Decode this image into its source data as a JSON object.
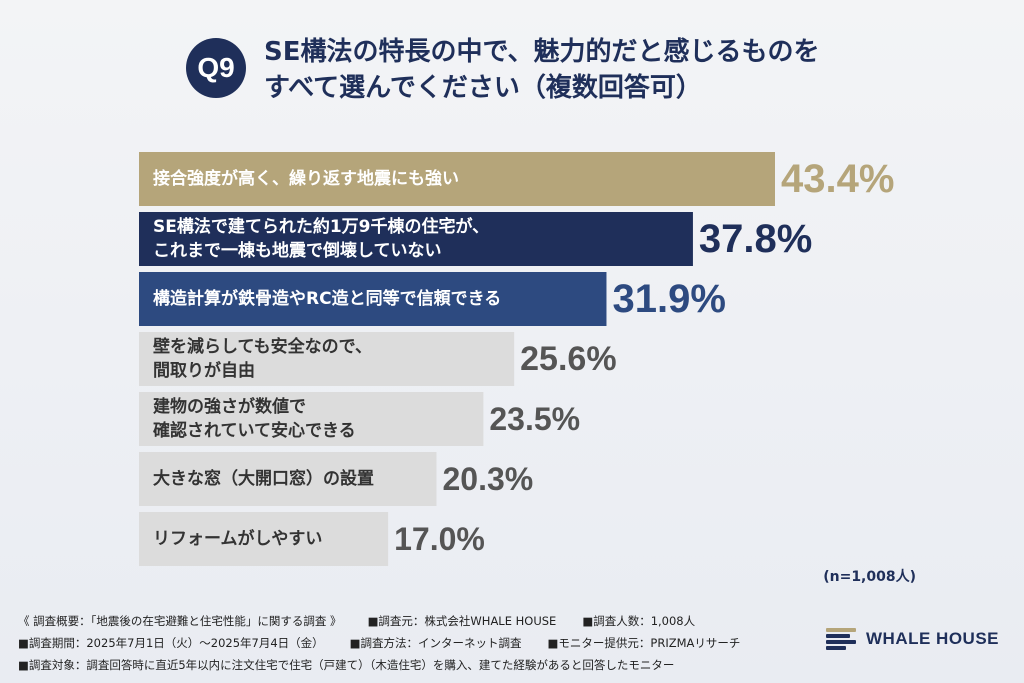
{
  "header": {
    "badge": "Q9",
    "title_line1": "SE構法の特長の中で、魅力的だと感じるものを",
    "title_line2": "すべて選んでください（複数回答可）"
  },
  "chart_data": {
    "type": "bar",
    "orientation": "horizontal",
    "unit": "%",
    "categories": [
      [
        "接合強度が高く、繰り返す地震にも強い"
      ],
      [
        "SE構法で建てられた約1万9千棟の住宅が、",
        "これまで一棟も地震で倒壊していない"
      ],
      [
        "構造計算が鉄骨造やRC造と同等で信頼できる"
      ],
      [
        "壁を減らしても安全なので、",
        "間取りが自由"
      ],
      [
        "建物の強さが数値で",
        "確認されていて安心できる"
      ],
      [
        "大きな窓（大開口窓）の設置"
      ],
      [
        "リフォームがしやすい"
      ]
    ],
    "values": [
      43.4,
      37.8,
      31.9,
      25.6,
      23.5,
      20.3,
      17.0
    ],
    "value_labels": [
      "43.4%",
      "37.8%",
      "31.9%",
      "25.6%",
      "23.5%",
      "20.3%",
      "17.0%"
    ],
    "bar_colors": [
      "#b5a57a",
      "#1f2f5a",
      "#2d4a80",
      "#dcdcdc",
      "#dcdcdc",
      "#dcdcdc",
      "#dcdcdc"
    ],
    "value_colors": [
      "#b5a57a",
      "#1f2f5a",
      "#2d4a80",
      "#555555",
      "#555555",
      "#555555",
      "#555555"
    ],
    "grid": false,
    "legend": "none"
  },
  "sample_size": "(n=1,008人)",
  "footer": {
    "summary": "《 調査概要：「地震後の在宅避難と住宅性能」に関する調査 》",
    "org": "■調査元：株式会社WHALE HOUSE",
    "count": "■調査人数：1,008人",
    "period": "■調査期間：2025年7月1日（火）〜2025年7月4日（金）",
    "method": "■調査方法：インターネット調査",
    "provider": "■モニター提供元：PRIZMAリサーチ",
    "target": "■調査対象：調査回答時に直近5年以内に注文住宅で住宅（戸建て）（木造住宅）を購入、建てた経験があると回答したモニター"
  },
  "logo": {
    "text": "WHALE HOUSE",
    "colors": [
      "#b5a57a",
      "#1f2f5a",
      "#1f2f5a",
      "#1f2f5a"
    ]
  }
}
